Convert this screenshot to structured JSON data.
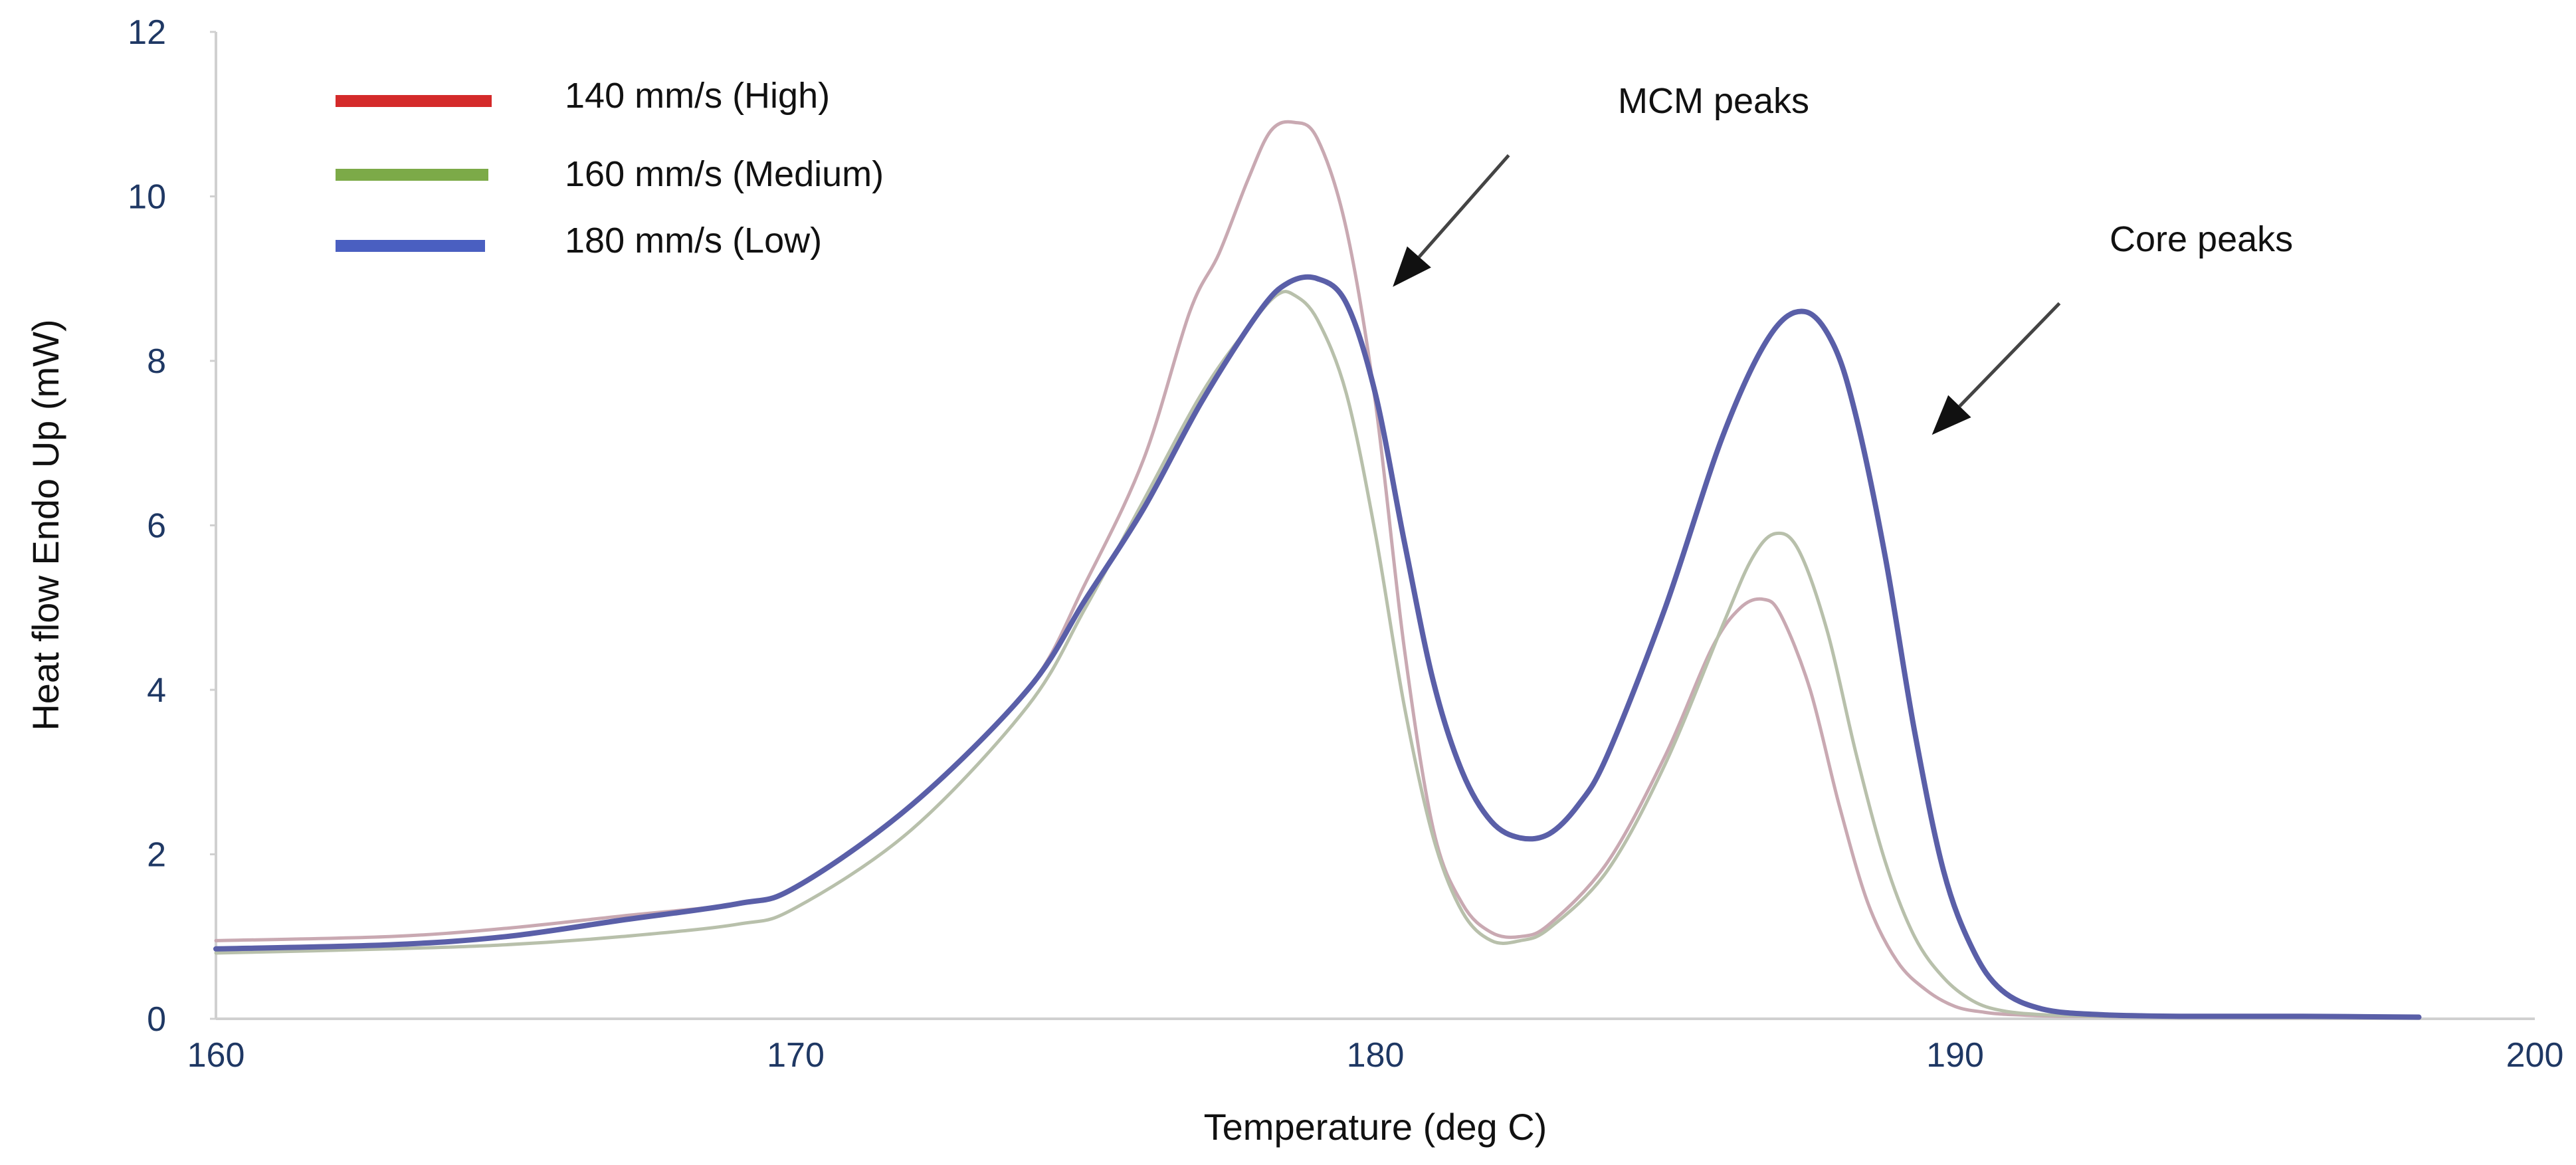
{
  "chart_data": {
    "type": "line",
    "title": "",
    "xlabel": "Temperature (deg C)",
    "ylabel": "Heat flow Endo Up (mW)",
    "xlim": [
      160,
      200
    ],
    "ylim": [
      0,
      12
    ],
    "xticks": [
      "160",
      "170",
      "180",
      "190",
      "200"
    ],
    "yticks": [
      "0",
      "2",
      "4",
      "6",
      "8",
      "10",
      "12"
    ],
    "grid": false,
    "legend_position": "top-left",
    "series": [
      {
        "name": "140 mm/s (High)",
        "legend_color": "#d42a2a",
        "line_color": "#c9a9b2",
        "x": [
          160,
          163,
          165,
          167,
          169,
          170,
          172,
          174,
          175,
          176,
          176.8,
          177.3,
          177.8,
          178.2,
          178.6,
          179.0,
          179.5,
          180.0,
          180.5,
          181.0,
          181.5,
          182.0,
          182.5,
          183.0,
          184.0,
          185.0,
          185.8,
          186.3,
          186.7,
          187.0,
          187.5,
          188.0,
          188.5,
          189.0,
          189.5,
          190.0,
          190.5,
          191.0,
          192.0,
          194.0,
          198.0
        ],
        "y": [
          0.95,
          1.0,
          1.1,
          1.25,
          1.4,
          1.6,
          2.6,
          4.0,
          5.3,
          6.8,
          8.6,
          9.3,
          10.2,
          10.8,
          10.9,
          10.7,
          9.6,
          7.5,
          4.5,
          2.3,
          1.4,
          1.05,
          1.0,
          1.15,
          1.9,
          3.2,
          4.5,
          5.0,
          5.1,
          4.9,
          4.0,
          2.6,
          1.4,
          0.7,
          0.35,
          0.15,
          0.08,
          0.05,
          0.03,
          0.02,
          0.02
        ]
      },
      {
        "name": "160 mm/s (Medium)",
        "legend_color": "#7caa48",
        "line_color": "#b8c0ab",
        "x": [
          160,
          163,
          165,
          167,
          169,
          170,
          172,
          174,
          175,
          176,
          177,
          177.8,
          178.3,
          178.6,
          179.0,
          179.5,
          180.0,
          180.5,
          181.0,
          181.5,
          182.0,
          182.5,
          183.0,
          184.0,
          185.0,
          186.0,
          186.5,
          186.9,
          187.3,
          187.8,
          188.3,
          188.8,
          189.3,
          189.8,
          190.3,
          190.8,
          191.5,
          192.5,
          194.0,
          198.0
        ],
        "y": [
          0.8,
          0.85,
          0.9,
          1.0,
          1.15,
          1.35,
          2.3,
          3.8,
          5.0,
          6.3,
          7.6,
          8.4,
          8.8,
          8.8,
          8.5,
          7.6,
          5.9,
          3.8,
          2.2,
          1.3,
          0.95,
          0.95,
          1.1,
          1.8,
          3.1,
          4.8,
          5.6,
          5.9,
          5.7,
          4.7,
          3.2,
          1.9,
          1.0,
          0.5,
          0.22,
          0.1,
          0.05,
          0.03,
          0.02,
          0.02
        ]
      },
      {
        "name": "180 mm/s (Low)",
        "legend_color": "#4a5fc1",
        "line_color": "#5a5fa8",
        "x": [
          160,
          163,
          165,
          167,
          169,
          170,
          172,
          174,
          175,
          176,
          177,
          178.0,
          178.5,
          179.0,
          179.5,
          180.0,
          180.5,
          181.0,
          181.5,
          182.0,
          182.5,
          183.0,
          183.5,
          184.0,
          185.0,
          186.0,
          186.8,
          187.4,
          187.9,
          188.3,
          188.8,
          189.3,
          189.8,
          190.3,
          190.8,
          191.5,
          192.5,
          194.0,
          196.0,
          198.0
        ],
        "y": [
          0.85,
          0.9,
          1.0,
          1.2,
          1.4,
          1.6,
          2.6,
          4.0,
          5.1,
          6.2,
          7.5,
          8.6,
          8.95,
          9.0,
          8.7,
          7.6,
          5.8,
          4.1,
          3.0,
          2.4,
          2.2,
          2.25,
          2.6,
          3.2,
          5.0,
          7.1,
          8.3,
          8.6,
          8.2,
          7.3,
          5.6,
          3.5,
          1.8,
          0.85,
          0.35,
          0.12,
          0.05,
          0.03,
          0.03,
          0.02
        ]
      }
    ],
    "annotations": [
      {
        "text": "MCM peaks",
        "arrow_from": [
          182.3,
          10.5
        ],
        "arrow_to": [
          180.3,
          8.9
        ]
      },
      {
        "text": "Core peaks",
        "arrow_from": [
          191.8,
          8.7
        ],
        "arrow_to": [
          189.6,
          7.1
        ]
      }
    ]
  }
}
